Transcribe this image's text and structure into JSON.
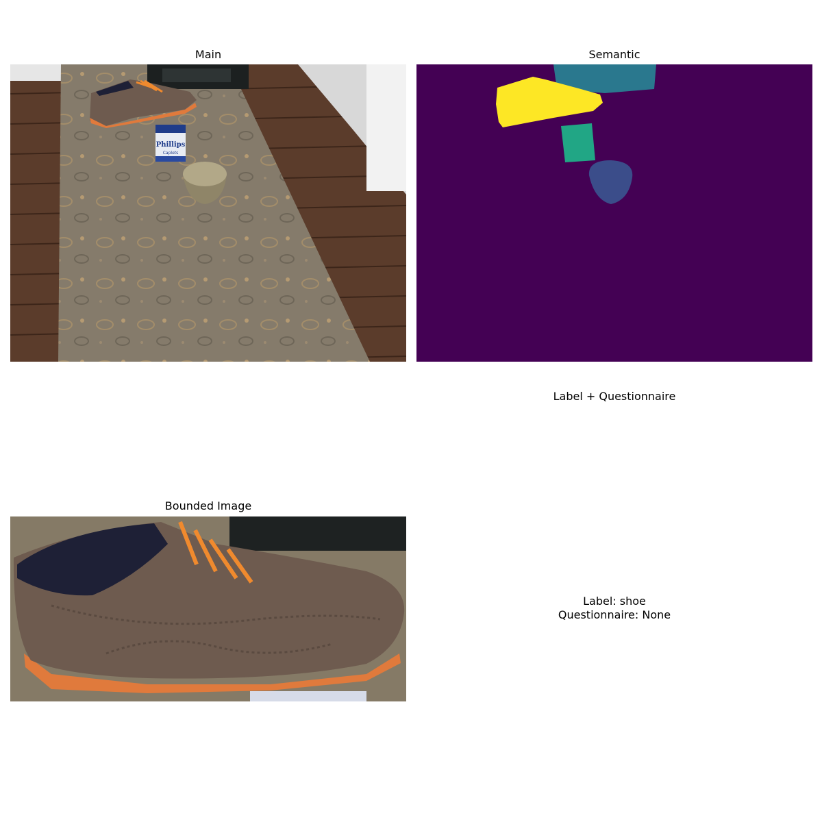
{
  "panels": {
    "main": {
      "title": "Main",
      "box_brand": "Phillips",
      "box_subtext": "Caplets"
    },
    "semantic": {
      "title": "Semantic",
      "colors": {
        "background": "#440154",
        "shoe": "#fde725",
        "box": "#21a685",
        "bowl": "#3b4d8a",
        "device": "#2a788e"
      }
    },
    "bounded": {
      "title": "Bounded Image"
    },
    "label_questionnaire": {
      "title": "Label + Questionnaire",
      "label_line": "Label: shoe",
      "questionnaire_line": "Questionnaire: None"
    }
  },
  "colors": {
    "floor": "#5a3b2a",
    "floor_dark": "#4a2e20",
    "cloth": "#8a7f6e",
    "shoe_leather": "#6e5b4f",
    "sole": "#e07a3c",
    "laces": "#f08a2e"
  }
}
